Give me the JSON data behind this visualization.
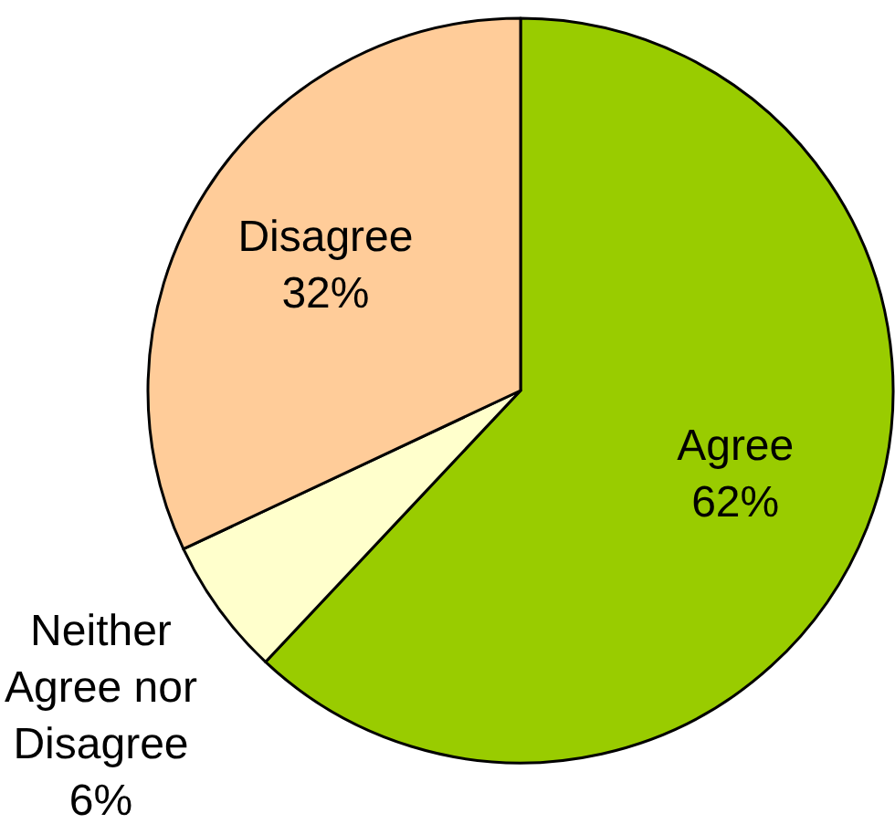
{
  "chart_data": {
    "type": "pie",
    "categories": [
      "Agree",
      "Neither Agree nor Disagree",
      "Disagree"
    ],
    "values": [
      62,
      6,
      32
    ],
    "colors": [
      "#99cc00",
      "#ffffcc",
      "#ffcc99"
    ],
    "value_labels": [
      "62%",
      "6%",
      "32%"
    ]
  }
}
